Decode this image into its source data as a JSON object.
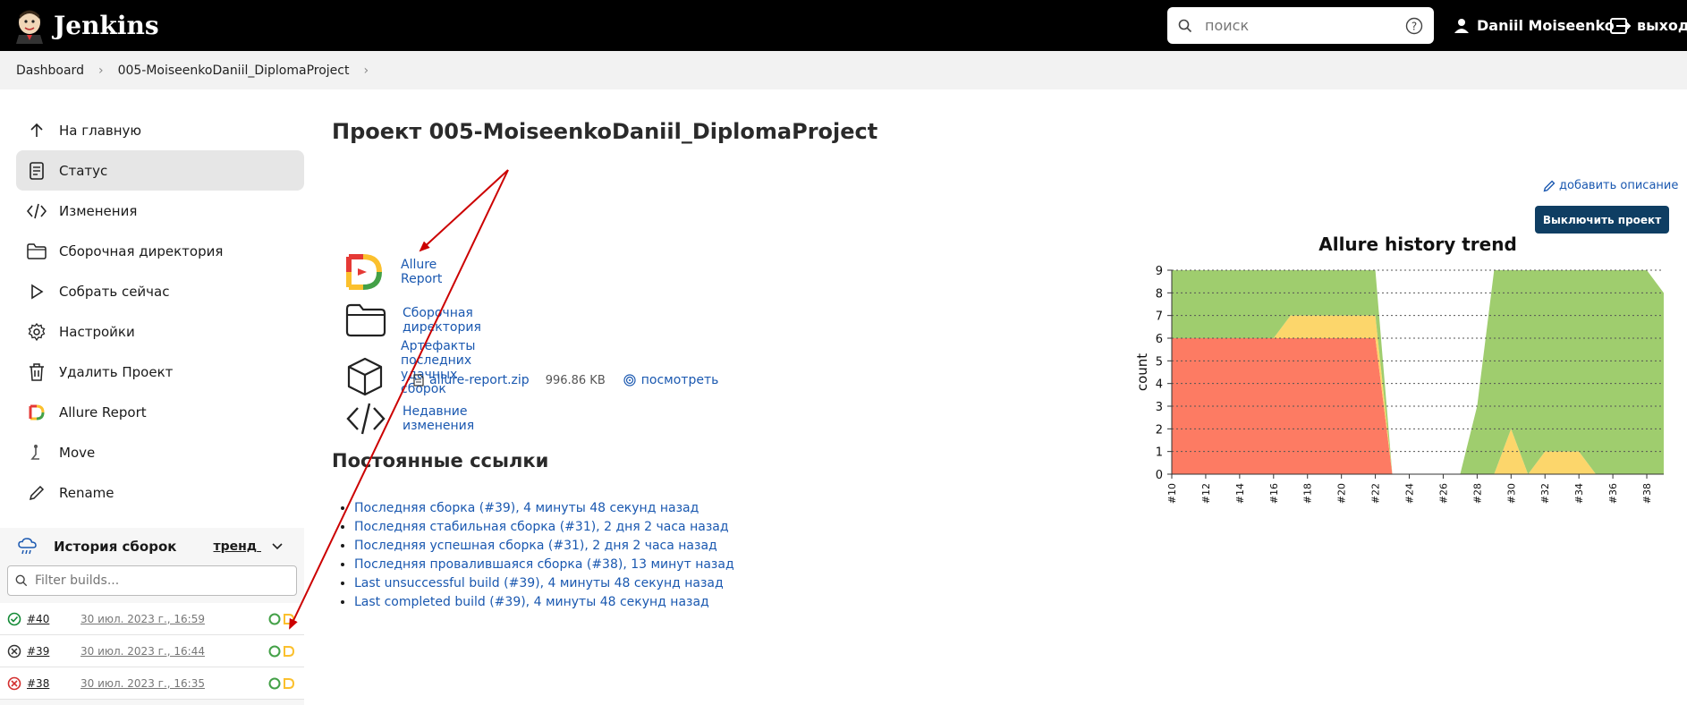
{
  "header": {
    "app_name": "Jenkins",
    "search_placeholder": "поиск",
    "user_name": "Daniil Moiseenko",
    "logout_label": "выход"
  },
  "breadcrumb": [
    "Dashboard",
    "005-MoiseenkoDaniil_DiplomaProject"
  ],
  "sidebar": {
    "items": [
      {
        "label": "На главную",
        "icon": "arrow-up-icon"
      },
      {
        "label": "Статус",
        "icon": "document-icon",
        "active": true
      },
      {
        "label": "Изменения",
        "icon": "code-icon"
      },
      {
        "label": "Сборочная директория",
        "icon": "folder-icon"
      },
      {
        "label": "Собрать сейчас",
        "icon": "play-icon"
      },
      {
        "label": "Настройки",
        "icon": "gear-icon"
      },
      {
        "label": "Удалить Проект",
        "icon": "trash-icon"
      },
      {
        "label": "Allure Report",
        "icon": "allure-icon"
      },
      {
        "label": "Move",
        "icon": "move-icon"
      },
      {
        "label": "Rename",
        "icon": "pencil-icon"
      }
    ]
  },
  "history": {
    "title": "История сборок",
    "trend_label": "тренд",
    "filter_placeholder": "Filter builds...",
    "builds": [
      {
        "number": "#40",
        "date": "30 июл. 2023 г., 16:59",
        "status": "success"
      },
      {
        "number": "#39",
        "date": "30 июл. 2023 г., 16:44",
        "status": "aborted"
      },
      {
        "number": "#38",
        "date": "30 июл. 2023 г., 16:35",
        "status": "failed"
      }
    ]
  },
  "main": {
    "title": "Проект 005-MoiseenkoDaniil_DiplomaProject",
    "add_description": "добавить описание",
    "disable_button": "Выключить проект",
    "links": [
      {
        "label": "Allure Report",
        "icon": "allure-icon"
      },
      {
        "label": "Сборочная директория",
        "icon": "folder-icon"
      },
      {
        "label": "Артефакты последних удачных сборок",
        "icon": "package-icon"
      },
      {
        "label": "Недавние изменения",
        "icon": "code-icon"
      }
    ],
    "artifact": {
      "file": "allure-report.zip",
      "size": "996.86 KB",
      "view": "посмотреть"
    },
    "permalinks_title": "Постоянные ссылки",
    "permalinks": [
      "Последняя сборка (#39), 4 минуты 48 секунд назад",
      "Последняя стабильная сборка (#31), 2 дня 2 часа назад",
      "Последняя успешная сборка (#31), 2 дня 2 часа назад",
      "Последняя провалившаяся сборка (#38), 13 минут назад",
      "Last unsuccessful build (#39), 4 минуты 48 секунд назад",
      "Last completed build (#39), 4 минуты 48 секунд назад"
    ]
  },
  "colors": {
    "header_bg": "#000000",
    "link": "#1a58b0",
    "button_bg": "#0f3e63",
    "failed": "#fd7b63",
    "broken": "#fcd66b",
    "passed": "#9fcd6e",
    "annotation_arrow": "#cc0000"
  },
  "chart_data": {
    "type": "area",
    "title": "Allure history trend",
    "ylabel": "count",
    "xlabel": "",
    "ylim": [
      0,
      9
    ],
    "yticks": [
      0,
      1,
      2,
      3,
      4,
      5,
      6,
      7,
      8,
      9
    ],
    "x": [
      10,
      11,
      12,
      13,
      14,
      15,
      16,
      17,
      18,
      19,
      20,
      21,
      22,
      23,
      24,
      25,
      26,
      27,
      28,
      29,
      30,
      31,
      32,
      33,
      34,
      35,
      36,
      37,
      38,
      39
    ],
    "xtick_labels": [
      "#10",
      "#12",
      "#14",
      "#16",
      "#18",
      "#20",
      "#22",
      "#24",
      "#26",
      "#28",
      "#30",
      "#32",
      "#34",
      "#36",
      "#38"
    ],
    "series": [
      {
        "name": "failed",
        "values": [
          6,
          6,
          6,
          6,
          6,
          6,
          6,
          6,
          6,
          6,
          6,
          6,
          6,
          0,
          0,
          0,
          0,
          0,
          0,
          0,
          0,
          0,
          0,
          0,
          0,
          0,
          0,
          0,
          0,
          0
        ]
      },
      {
        "name": "broken",
        "values": [
          0,
          0,
          0,
          0,
          0,
          0,
          0,
          1,
          1,
          1,
          1,
          1,
          1,
          0,
          0,
          0,
          0,
          0,
          0,
          0,
          2,
          0,
          1,
          1,
          1,
          0,
          0,
          0,
          0,
          0
        ]
      },
      {
        "name": "passed",
        "values": [
          3,
          3,
          3,
          3,
          3,
          3,
          3,
          2,
          2,
          2,
          2,
          2,
          2,
          0,
          0,
          0,
          0,
          0,
          3,
          9,
          7,
          9,
          8,
          8,
          8,
          9,
          9,
          9,
          9,
          8
        ]
      }
    ],
    "grid": true
  }
}
